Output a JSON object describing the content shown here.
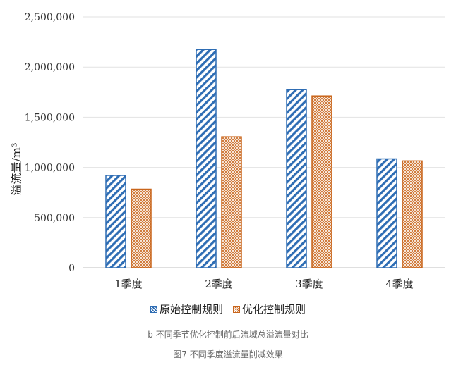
{
  "chart_data": {
    "type": "bar",
    "categories": [
      "1季度",
      "2季度",
      "3季度",
      "4季度"
    ],
    "series": [
      {
        "name": "原始控制规则",
        "values": [
          920000,
          2175000,
          1775000,
          1085000
        ],
        "color": "#2e6db4",
        "pattern": "diagonal-stripes"
      },
      {
        "name": "优化控制规则",
        "values": [
          783000,
          1305000,
          1712000,
          1065000
        ],
        "color": "#c9651b",
        "pattern": "crosshatch"
      }
    ],
    "ylabel": "溢流量/m³",
    "ylim": [
      0,
      2500000
    ],
    "yticks": [
      "0",
      "500,000",
      "1,000,000",
      "1,500,000",
      "2,000,000",
      "2,500,000"
    ],
    "ytick_values": [
      0,
      500000,
      1000000,
      1500000,
      2000000,
      2500000
    ],
    "grid": true,
    "legend_position": "bottom"
  },
  "captions": {
    "subtitle": "b 不同季节优化控制前后流域总溢流量对比",
    "figure_title": "图7 不同季度溢流量削减效果"
  }
}
